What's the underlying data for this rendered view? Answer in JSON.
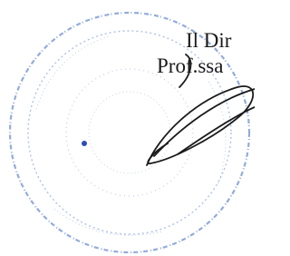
{
  "stamp": {
    "lines": [
      "Il Dir",
      "Prof.ssa"
    ]
  }
}
